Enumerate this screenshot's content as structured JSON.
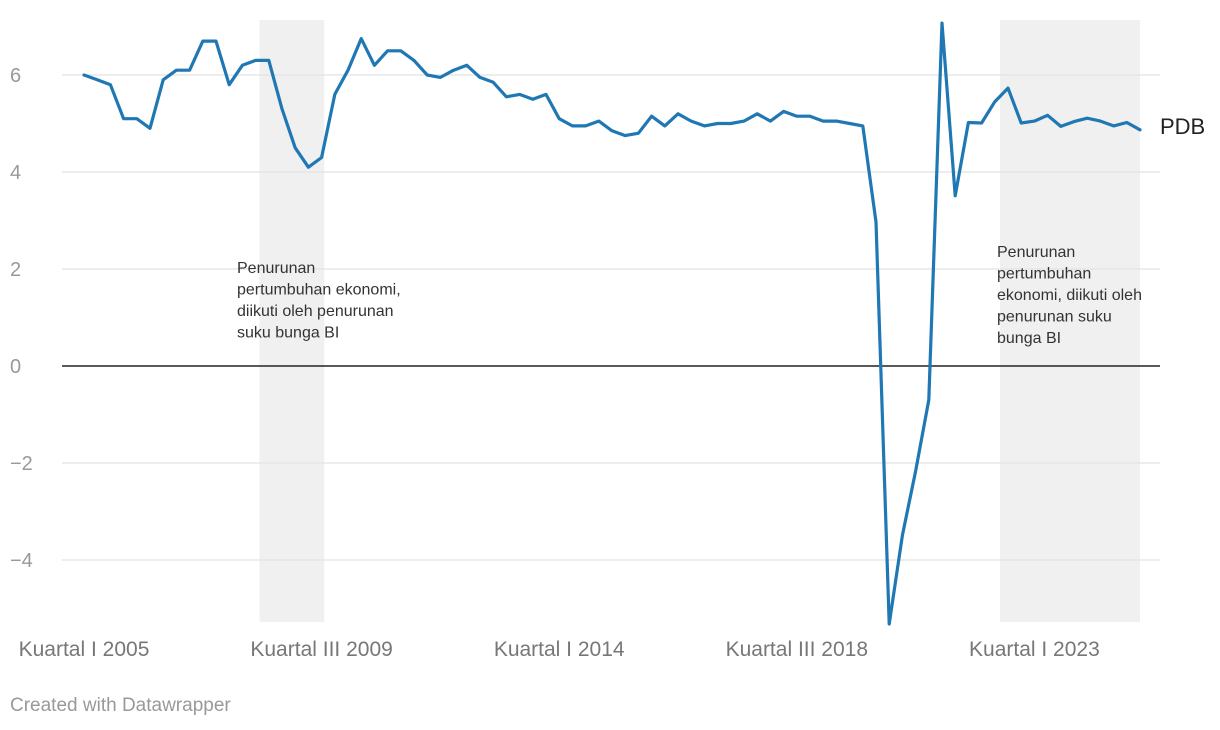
{
  "chart_data": {
    "type": "line",
    "title": "",
    "xlabel": "",
    "ylabel": "",
    "ylim": [
      -5.4,
      7.2
    ],
    "y_ticks": [
      -4,
      -2,
      0,
      2,
      4,
      6
    ],
    "y_tick_labels": [
      "−4",
      "−2",
      "0",
      "2",
      "4",
      "6"
    ],
    "grid": true,
    "x_tick_labels": [
      {
        "index": 0,
        "label": "Kuartal I 2005"
      },
      {
        "index": 18,
        "label": "Kuartal III 2009"
      },
      {
        "index": 36,
        "label": "Kuartal I 2014"
      },
      {
        "index": 54,
        "label": "Kuartal III 2018"
      },
      {
        "index": 72,
        "label": "Kuartal I 2023"
      }
    ],
    "shaded_ranges": [
      {
        "start": 13.3,
        "end": 18.2
      },
      {
        "start": 69.4,
        "end": 80.0
      }
    ],
    "annotations": [
      {
        "lines": [
          "Penurunan",
          "pertumbuhan ekonomi,",
          "diikuti oleh penurunan",
          "suku bunga BI"
        ]
      },
      {
        "lines": [
          "Penurunan",
          "pertumbuhan",
          "ekonomi, diikuti oleh",
          "penurunan suku",
          "bunga BI"
        ]
      }
    ],
    "series": [
      {
        "name": "PDB",
        "color": "#1f77b4",
        "values": [
          6.0,
          5.9,
          5.8,
          5.1,
          5.1,
          4.9,
          5.9,
          6.1,
          6.1,
          6.7,
          6.7,
          5.8,
          6.2,
          6.3,
          6.3,
          5.3,
          4.5,
          4.1,
          4.3,
          5.6,
          6.1,
          6.75,
          6.2,
          6.5,
          6.5,
          6.3,
          6.0,
          5.95,
          6.1,
          6.2,
          5.95,
          5.85,
          5.55,
          5.6,
          5.5,
          5.6,
          5.1,
          4.95,
          4.95,
          5.05,
          4.85,
          4.75,
          4.8,
          5.15,
          4.95,
          5.2,
          5.05,
          4.95,
          5.0,
          5.0,
          5.05,
          5.2,
          5.05,
          5.25,
          5.15,
          5.15,
          5.05,
          5.05,
          5.0,
          4.95,
          2.97,
          -5.32,
          -3.49,
          -2.17,
          -0.7,
          7.07,
          3.51,
          5.02,
          5.01,
          5.45,
          5.73,
          5.01,
          5.05,
          5.17,
          4.94,
          5.04,
          5.11,
          5.05,
          4.95,
          5.02,
          4.87
        ]
      }
    ]
  },
  "footer": "Created with Datawrapper"
}
